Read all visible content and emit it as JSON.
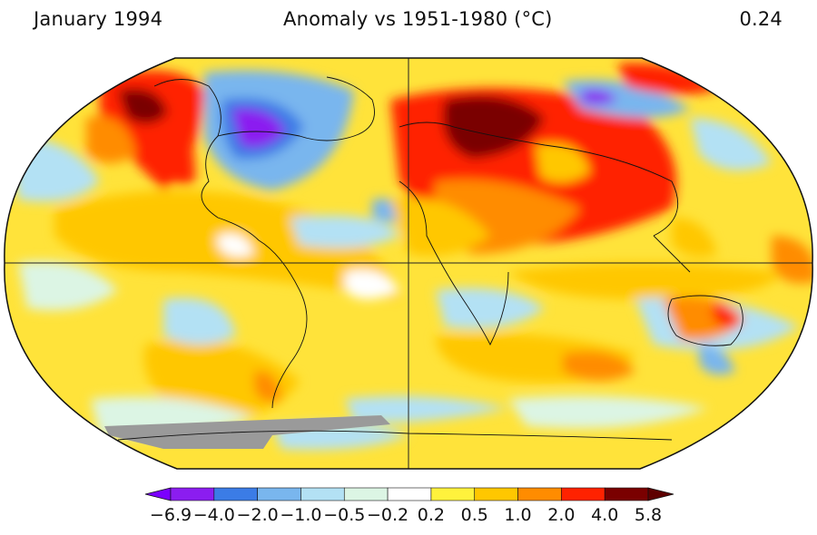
{
  "header": {
    "date": "January 1994",
    "title": "Anomaly vs 1951-1980 (°C)",
    "global_mean": "0.24"
  },
  "legend": {
    "tick_labels": [
      "−6.9",
      "−4.0",
      "−2.0",
      "−1.0",
      "−0.5",
      "−0.2",
      "0.2",
      "0.5",
      "1.0",
      "2.0",
      "4.0",
      "5.8"
    ],
    "bin_colors": [
      "#8b1df0",
      "#3b7ce6",
      "#79b6ee",
      "#b3e1f4",
      "#dcf5e4",
      "#ffffff",
      "#fff23c",
      "#ffc700",
      "#ff8c00",
      "#ff2200",
      "#7a0000"
    ],
    "min_arrow_color": "#7b00ff",
    "max_arrow_color": "#5e0000"
  },
  "colors": {
    "land_missing": "#9a9a9a",
    "ocean_base": "#ffe33a"
  }
}
